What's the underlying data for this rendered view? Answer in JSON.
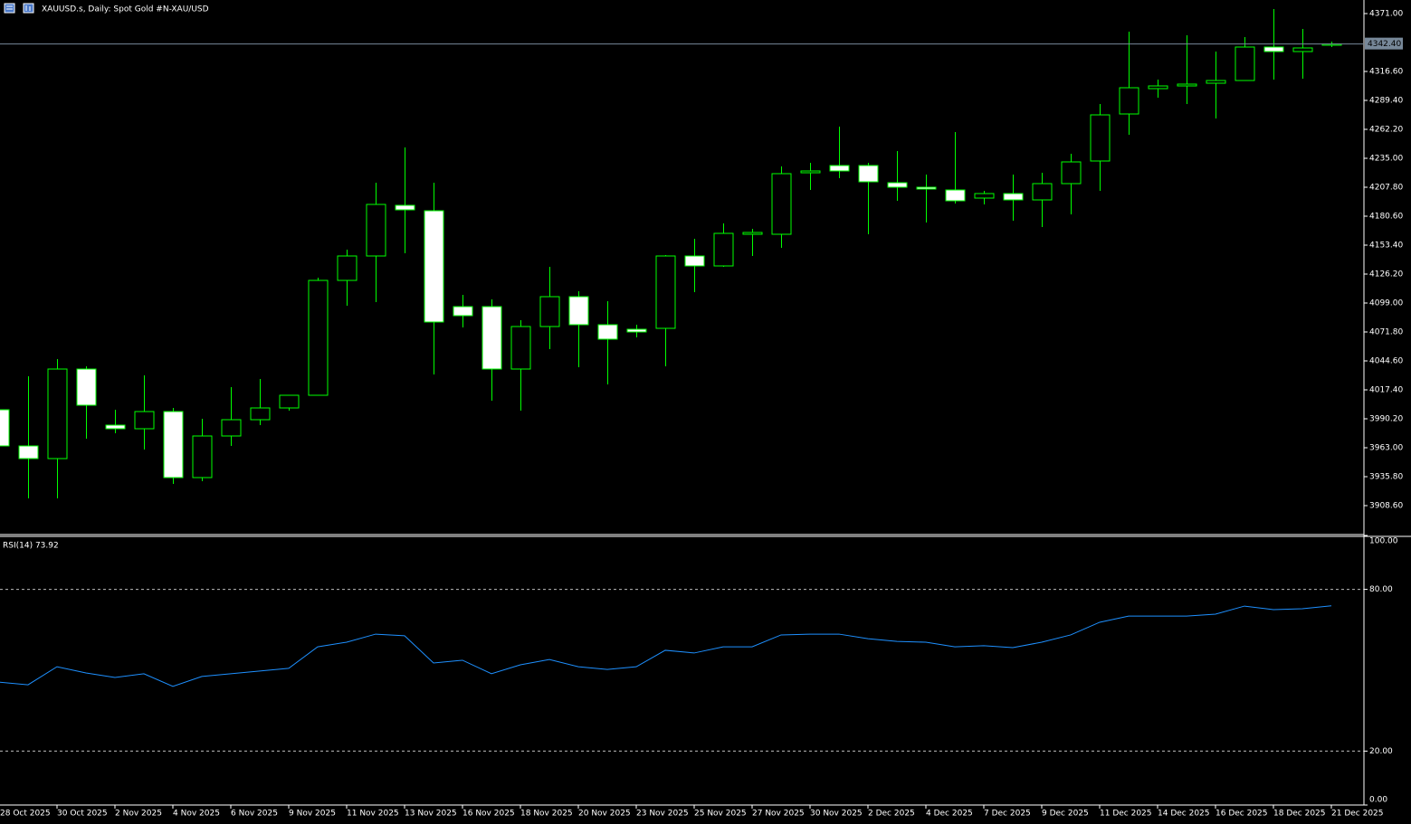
{
  "chart_data": [
    {
      "type": "candlestick",
      "title": "XAUUSD.s, Daily:  Spot Gold #N-XAU/USD",
      "categories": [
        "28 Oct 2025",
        null,
        "30 Oct 2025",
        null,
        "2 Nov 2025",
        null,
        "4 Nov 2025",
        null,
        "6 Nov 2025",
        null,
        "9 Nov 2025",
        null,
        "11 Nov 2025",
        null,
        "13 Nov 2025",
        null,
        "16 Nov 2025",
        null,
        "18 Nov 2025",
        null,
        "20 Nov 2025",
        null,
        "23 Nov 2025",
        null,
        "25 Nov 2025",
        null,
        "27 Nov 2025",
        null,
        "30 Nov 2025",
        null,
        "2 Dec 2025",
        null,
        "4 Dec 2025",
        null,
        "7 Dec 2025",
        null,
        "9 Dec 2025",
        null,
        "11 Dec 2025",
        null,
        "14 Dec 2025",
        null,
        "16 Dec 2025",
        null,
        "18 Dec 2025",
        null,
        "21 Dec 2025"
      ],
      "open": [
        3998.7,
        3964.7,
        3952.8,
        4036.95,
        3984.25,
        3980.85,
        3997.0,
        3934.95,
        3974.05,
        3989.35,
        4000.4,
        4012.3,
        4120.25,
        4143.2,
        4190.8,
        4185.7,
        4095.6,
        4095.6,
        4036.95,
        4076.9,
        4104.95,
        4078.6,
        4074.35,
        4075.2,
        4143.2,
        4133.85,
        4163.6,
        4163.6,
        4221.4,
        4228.2,
        4228.2,
        4212.05,
        4207.8,
        4205.25,
        4197.6,
        4201.85,
        4195.9,
        4211.2,
        4232.45,
        4276.65,
        4300.45,
        4303.0,
        4305.55,
        4308.1,
        4339.55,
        4335.3,
        4341.25
      ],
      "high": [
        4001.25,
        4030.15,
        4046.3,
        4039.5,
        3998.7,
        4031.0,
        4000.4,
        3990.2,
        4019.95,
        4027.6,
        4012.3,
        4122.8,
        4149.15,
        4212.05,
        4245.2,
        4212.05,
        4106.65,
        4102.4,
        4082.85,
        4133.0,
        4110.05,
        4100.7,
        4078.6,
        4144.05,
        4159.35,
        4173.8,
        4168.7,
        4227.35,
        4230.75,
        4264.75,
        4230.75,
        4241.8,
        4219.7,
        4259.65,
        4204.4,
        4219.7,
        4221.4,
        4239.25,
        4286.0,
        4354.0,
        4308.95,
        4350.6,
        4335.3,
        4348.9,
        4375.25,
        4356.55,
        4344.65
      ],
      "low": [
        3958.75,
        3915.4,
        3915.4,
        3971.5,
        3976.6,
        3961.3,
        3929.0,
        3931.55,
        3964.7,
        3984.25,
        3997.85,
        4012.3,
        4096.45,
        4099.85,
        4145.75,
        4031.85,
        4076.05,
        4007.2,
        3997.85,
        4055.65,
        4038.65,
        4022.5,
        4066.7,
        4039.5,
        4109.2,
        4133.0,
        4143.2,
        4150.85,
        4205.25,
        4216.3,
        4163.6,
        4195.05,
        4174.65,
        4192.5,
        4191.65,
        4176.35,
        4170.4,
        4182.3,
        4204.4,
        4257.1,
        4291.95,
        4286.0,
        4272.4,
        4308.1,
        4308.95,
        4309.8,
        4339.55
      ],
      "close": [
        3964.7,
        3952.8,
        4036.95,
        4002.95,
        3980.85,
        3997.0,
        3934.95,
        3974.05,
        3989.35,
        4000.4,
        4012.3,
        4120.25,
        4143.2,
        4191.65,
        4186.55,
        4081.15,
        4087.1,
        4036.95,
        4076.9,
        4104.95,
        4078.6,
        4065.0,
        4071.8,
        4143.2,
        4133.85,
        4164.45,
        4165.3,
        4220.55,
        4223.1,
        4223.1,
        4212.9,
        4207.8,
        4206.1,
        4195.05,
        4201.85,
        4195.9,
        4211.2,
        4231.6,
        4275.8,
        4301.3,
        4303.0,
        4304.7,
        4308.1,
        4339.55,
        4335.3,
        4338.7,
        4342.4
      ],
      "up_color": "#000000",
      "down_color": "#ffffff",
      "wick_color": "#00ff00",
      "current_price": {
        "value": 4342.4,
        "label": "4342.40"
      },
      "current_price_color": "#778899",
      "ylim": [
        3882.25,
        4383.75
      ],
      "yticks": [
        {
          "value": 4371.0,
          "label": "4371.00"
        },
        {
          "value": 4316.6,
          "label": "4316.60"
        },
        {
          "value": 4289.4,
          "label": "4289.40"
        },
        {
          "value": 4262.2,
          "label": "4262.20"
        },
        {
          "value": 4235.0,
          "label": "4235.00"
        },
        {
          "value": 4207.8,
          "label": "4207.80"
        },
        {
          "value": 4180.6,
          "label": "4180.60"
        },
        {
          "value": 4153.4,
          "label": "4153.40"
        },
        {
          "value": 4126.2,
          "label": "4126.20"
        },
        {
          "value": 4099.0,
          "label": "4099.00"
        },
        {
          "value": 4071.8,
          "label": "4071.80"
        },
        {
          "value": 4044.6,
          "label": "4044.60"
        },
        {
          "value": 4017.4,
          "label": "4017.40"
        },
        {
          "value": 3990.2,
          "label": "3990.20"
        },
        {
          "value": 3963.0,
          "label": "3963.00"
        },
        {
          "value": 3935.8,
          "label": "3935.80"
        },
        {
          "value": 3908.6,
          "label": "3908.60"
        }
      ],
      "grid": false
    },
    {
      "type": "line",
      "title": "RSI(14) 73.92",
      "values": [
        45.6,
        44.6,
        51.3,
        49.0,
        47.3,
        48.7,
        44.0,
        47.7,
        48.7,
        49.7,
        50.7,
        58.7,
        60.4,
        63.4,
        62.8,
        52.7,
        53.7,
        48.7,
        52.0,
        54.0,
        51.3,
        50.3,
        51.3,
        57.4,
        56.4,
        58.7,
        58.7,
        63.1,
        63.4,
        63.4,
        61.7,
        60.7,
        60.4,
        58.7,
        59.1,
        58.4,
        60.4,
        63.1,
        67.8,
        70.1,
        70.1,
        70.1,
        70.8,
        73.8,
        72.5,
        72.8,
        73.92
      ],
      "color": "#1e90ff",
      "ylim": [
        0,
        100
      ],
      "yticks": [
        {
          "value": 100,
          "label": "100.00"
        },
        {
          "value": 80,
          "label": "80.00"
        },
        {
          "value": 20,
          "label": "20.00"
        },
        {
          "value": 0,
          "label": "0.00"
        }
      ],
      "level_lines": "dashed"
    }
  ]
}
